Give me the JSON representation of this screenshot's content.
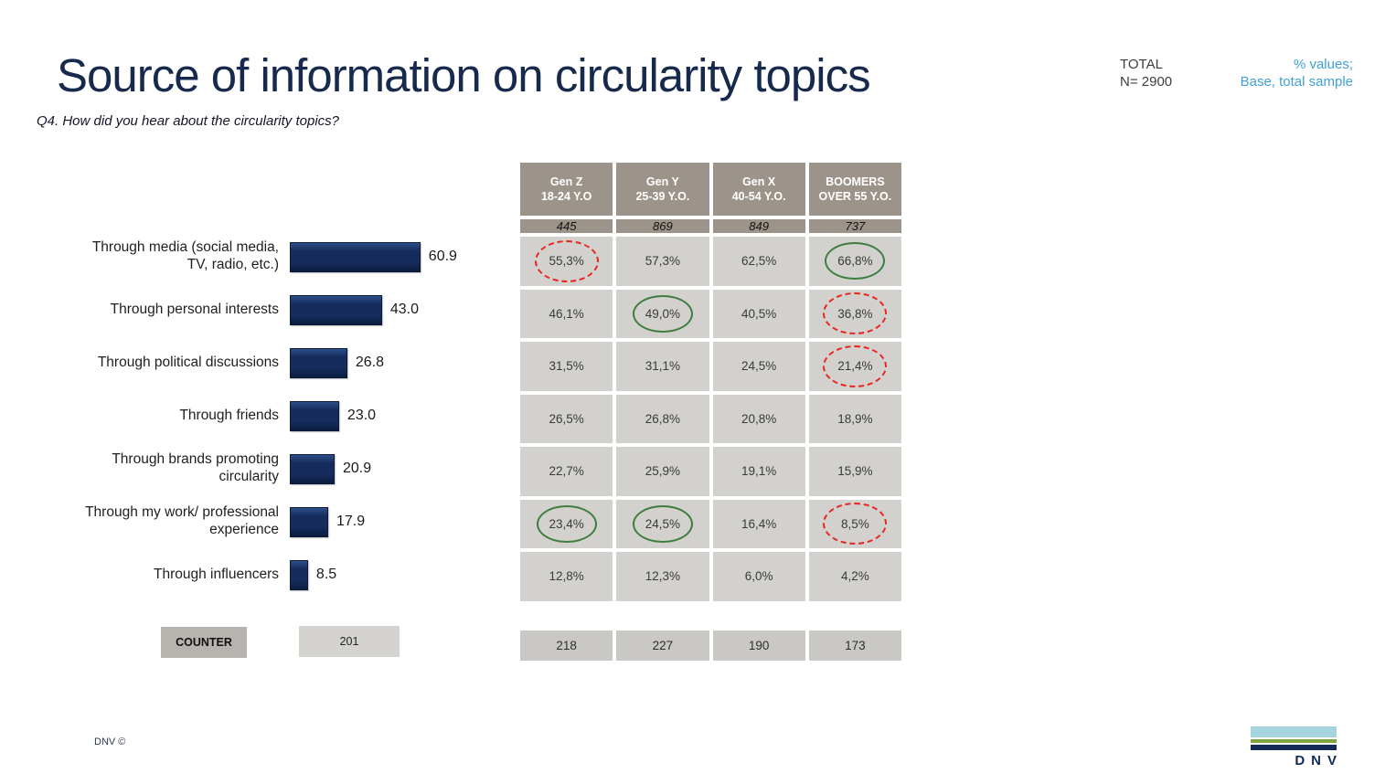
{
  "slide": {
    "title": "Source of information on circularity topics",
    "subtitle": "Q4. How did you hear about the circularity topics?",
    "total": {
      "label": "TOTAL",
      "n": "N= 2900"
    },
    "note": {
      "line1": "% values;",
      "line2": "Base, total sample"
    },
    "footer_left": "DNV ©",
    "logo_text": "DNV"
  },
  "chart_data": {
    "type": "bar",
    "orientation": "horizontal",
    "title": "Source of information on circularity topics",
    "question": "Q4. How did you hear about the circularity topics?",
    "categories": [
      "Through media (social media, TV, radio, etc.)",
      "Through personal interests",
      "Through political discussions",
      "Through friends",
      "Through brands promoting circularity",
      "Through my work/ professional experience",
      "Through influencers"
    ],
    "values": [
      60.9,
      43.0,
      26.8,
      23.0,
      20.9,
      17.9,
      8.5
    ],
    "value_labels": [
      "60.9",
      "43.0",
      "26.8",
      "23.0",
      "20.9",
      "17.9",
      "8.5"
    ],
    "xlim": [
      0,
      65
    ],
    "grid": false,
    "legend": false,
    "bar_color": "#152c5c"
  },
  "table": {
    "columns": [
      {
        "line1": "Gen Z",
        "line2": "18-24 Y.O",
        "base": "445",
        "count": "218"
      },
      {
        "line1": "Gen Y",
        "line2": "25-39 Y.O.",
        "base": "869",
        "count": "227"
      },
      {
        "line1": "Gen X",
        "line2": "40-54 Y.O.",
        "base": "849",
        "count": "190"
      },
      {
        "line1": "BOOMERS",
        "line2": "OVER 55 Y.O.",
        "base": "737",
        "count": "173"
      }
    ],
    "rows": [
      {
        "cells": [
          {
            "v": "55,3%",
            "mark": "red"
          },
          {
            "v": "57,3%"
          },
          {
            "v": "62,5%"
          },
          {
            "v": "66,8%",
            "mark": "green"
          }
        ]
      },
      {
        "cells": [
          {
            "v": "46,1%"
          },
          {
            "v": "49,0%",
            "mark": "green"
          },
          {
            "v": "40,5%"
          },
          {
            "v": "36,8%",
            "mark": "red"
          }
        ]
      },
      {
        "cells": [
          {
            "v": "31,5%"
          },
          {
            "v": "31,1%"
          },
          {
            "v": "24,5%"
          },
          {
            "v": "21,4%",
            "mark": "red"
          }
        ]
      },
      {
        "cells": [
          {
            "v": "26,5%"
          },
          {
            "v": "26,8%"
          },
          {
            "v": "20,8%"
          },
          {
            "v": "18,9%"
          }
        ]
      },
      {
        "cells": [
          {
            "v": "22,7%"
          },
          {
            "v": "25,9%"
          },
          {
            "v": "19,1%"
          },
          {
            "v": "15,9%"
          }
        ]
      },
      {
        "cells": [
          {
            "v": "23,4%",
            "mark": "green"
          },
          {
            "v": "24,5%",
            "mark": "green"
          },
          {
            "v": "16,4%"
          },
          {
            "v": "8,5%",
            "mark": "red"
          }
        ]
      },
      {
        "cells": [
          {
            "v": "12,8%"
          },
          {
            "v": "12,3%"
          },
          {
            "v": "6,0%"
          },
          {
            "v": "4,2%"
          }
        ]
      }
    ]
  },
  "counter": {
    "label": "COUNTER",
    "value": "201"
  },
  "colors": {
    "title": "#17294d",
    "accent-blue": "#41a0d8",
    "bar": "#152c5c",
    "bar-light": "#2d4f8a",
    "bar-dark": "#0b1d3e",
    "header-bg": "#9c948b",
    "cell-bg": "#d3d1ce",
    "counts-bg": "#cac8c4",
    "green-mark": "#3e7d3e",
    "red-mark": "#e8251f",
    "logo-lightblue": "#a5d3de",
    "logo-green": "#7fa53e",
    "logo-navy": "#122b56"
  }
}
